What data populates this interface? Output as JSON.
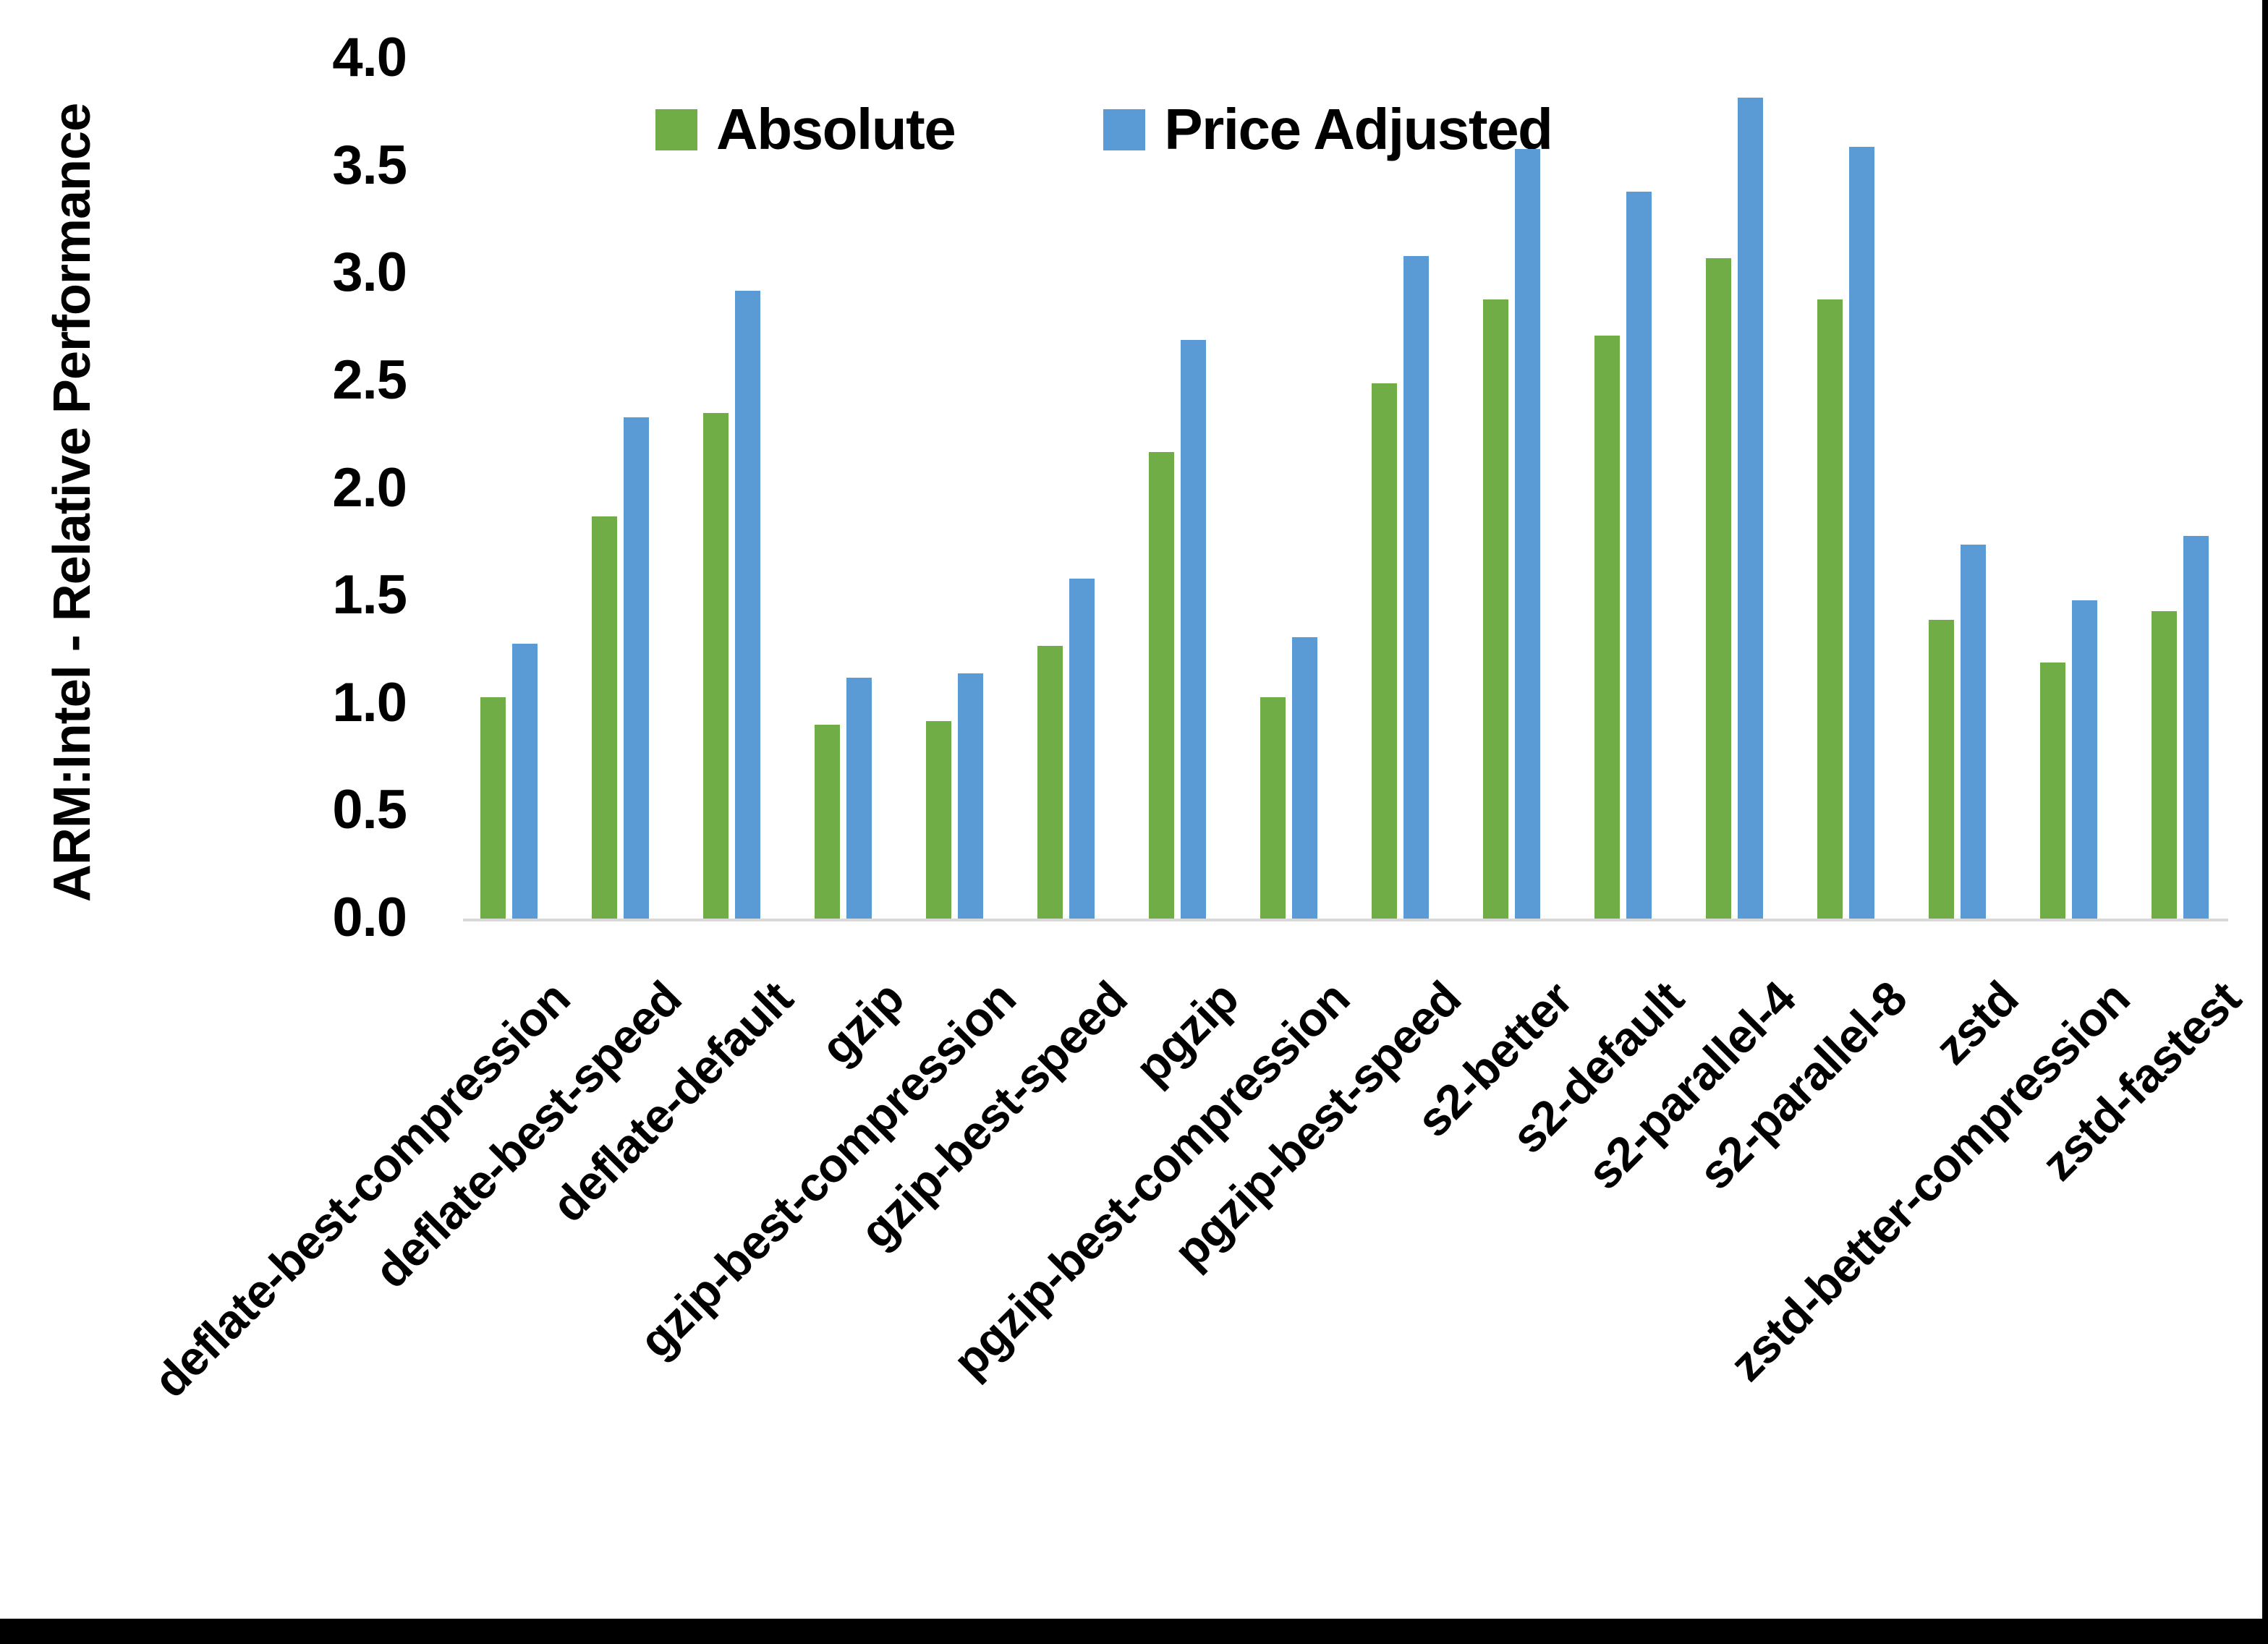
{
  "frame": {
    "background": "#FFFFFF",
    "border_color": "#000000",
    "baseline_color": "#D9D9D9"
  },
  "chart_data": {
    "type": "bar",
    "title": "",
    "xlabel": "",
    "ylabel": "ARM:Intel - Relative Performance",
    "ylim": [
      0,
      4.0
    ],
    "yticks": [
      "0.0",
      "0.5",
      "1.0",
      "1.5",
      "2.0",
      "2.5",
      "3.0",
      "3.5",
      "4.0"
    ],
    "grid": false,
    "legend_position": "top",
    "categories": [
      "deflate-best-compression",
      "deflate-best-speed",
      "deflate-default",
      "gzip",
      "gzip-best-compression",
      "gzip-best-speed",
      "pgzip",
      "pgzip-best-compression",
      "pgzip-best-speed",
      "s2-better",
      "s2-default",
      "s2-parallel-4",
      "s2-parallel-8",
      "zstd",
      "zstd-better-compression",
      "zstd-fastest"
    ],
    "series": [
      {
        "name": "Absolute",
        "color": "#70AD47",
        "values": [
          1.03,
          1.87,
          2.35,
          0.9,
          0.92,
          1.27,
          2.17,
          1.03,
          2.49,
          2.88,
          2.71,
          3.07,
          2.88,
          1.39,
          1.19,
          1.43
        ]
      },
      {
        "name": "Price Adjusted",
        "color": "#5B9BD5",
        "values": [
          1.28,
          2.33,
          2.92,
          1.12,
          1.14,
          1.58,
          2.69,
          1.31,
          3.08,
          3.58,
          3.38,
          3.82,
          3.59,
          1.74,
          1.48,
          1.78
        ]
      }
    ]
  }
}
